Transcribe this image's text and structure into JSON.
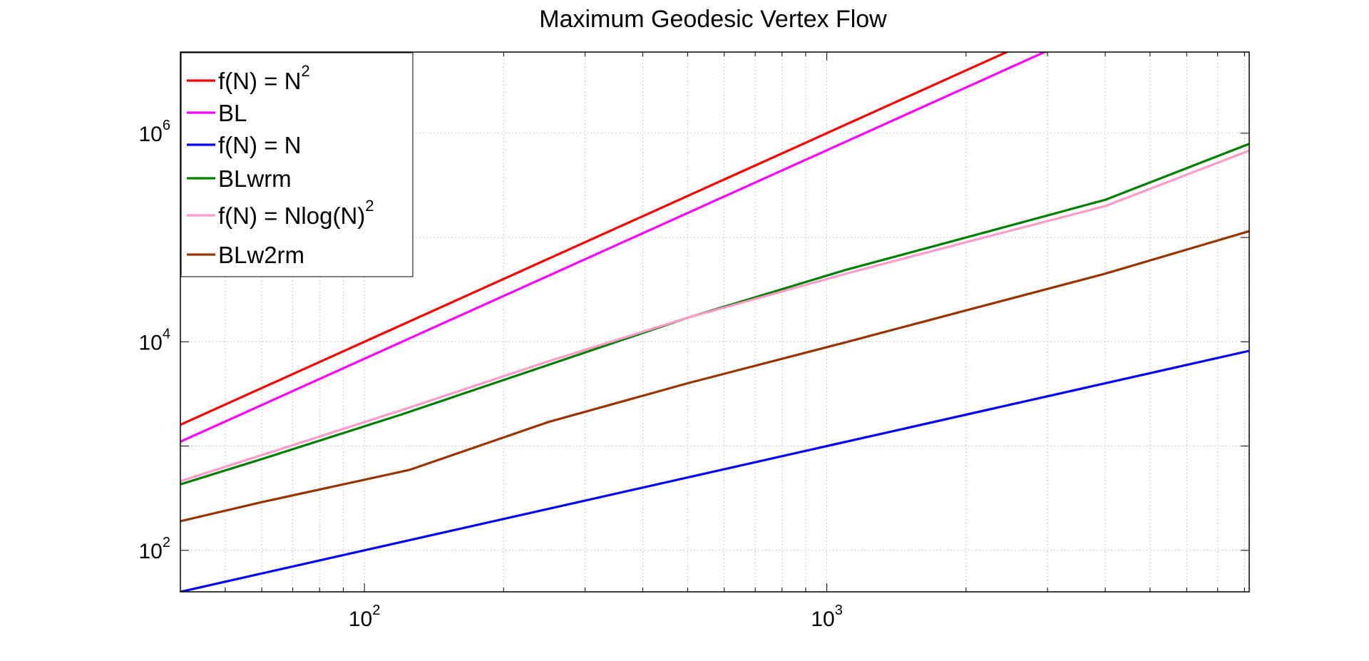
{
  "chart_data": {
    "type": "line",
    "title": "Maximum Geodesic Vertex Flow",
    "xlabel": "",
    "ylabel": "",
    "xscale": "log",
    "yscale": "log",
    "xlim": [
      40,
      8192
    ],
    "ylim": [
      40,
      6000000
    ],
    "grid": true,
    "legend_position": "top-left",
    "x_ticks": [
      {
        "value": 100,
        "base": "10",
        "exp": "2"
      },
      {
        "value": 1000,
        "base": "10",
        "exp": "3"
      }
    ],
    "y_ticks": [
      {
        "value": 100,
        "base": "10",
        "exp": "2"
      },
      {
        "value": 10000,
        "base": "10",
        "exp": "4"
      },
      {
        "value": 1000000,
        "base": "10",
        "exp": "6"
      }
    ],
    "series": [
      {
        "name": "f(N) = N",
        "name_sup": "2",
        "color": "#ff0000",
        "x": [
          40,
          8192
        ],
        "y": [
          1600,
          67100000
        ]
      },
      {
        "name": "BL",
        "name_sup": "",
        "color": "#ff00ff",
        "x": [
          40,
          8192
        ],
        "y": [
          1100,
          46000000
        ]
      },
      {
        "name": "f(N) = N",
        "name_sup": "",
        "color": "#0000ff",
        "x": [
          40,
          8192
        ],
        "y": [
          40,
          8192
        ]
      },
      {
        "name": "BLwrm",
        "name_sup": "",
        "color": "#008000",
        "x": [
          40,
          60,
          120,
          250,
          500,
          1100,
          2000,
          4000,
          8192
        ],
        "y": [
          430,
          750,
          2000,
          6000,
          17000,
          49000,
          100000,
          230000,
          790000
        ]
      },
      {
        "name": "f(N) = Nlog(N)",
        "name_sup": "2",
        "color": "#ff99c8",
        "x": [
          40,
          60,
          120,
          250,
          500,
          1100,
          2000,
          4000,
          8192
        ],
        "y": [
          460,
          820,
          2200,
          6500,
          17000,
          45000,
          90000,
          200000,
          680000
        ]
      },
      {
        "name": "BLw2rm",
        "name_sup": "",
        "color": "#993300",
        "x": [
          40,
          60,
          125,
          250,
          500,
          1100,
          2000,
          4000,
          8192
        ],
        "y": [
          190,
          290,
          590,
          1700,
          4000,
          9900,
          20000,
          45000,
          115000
        ]
      }
    ]
  }
}
